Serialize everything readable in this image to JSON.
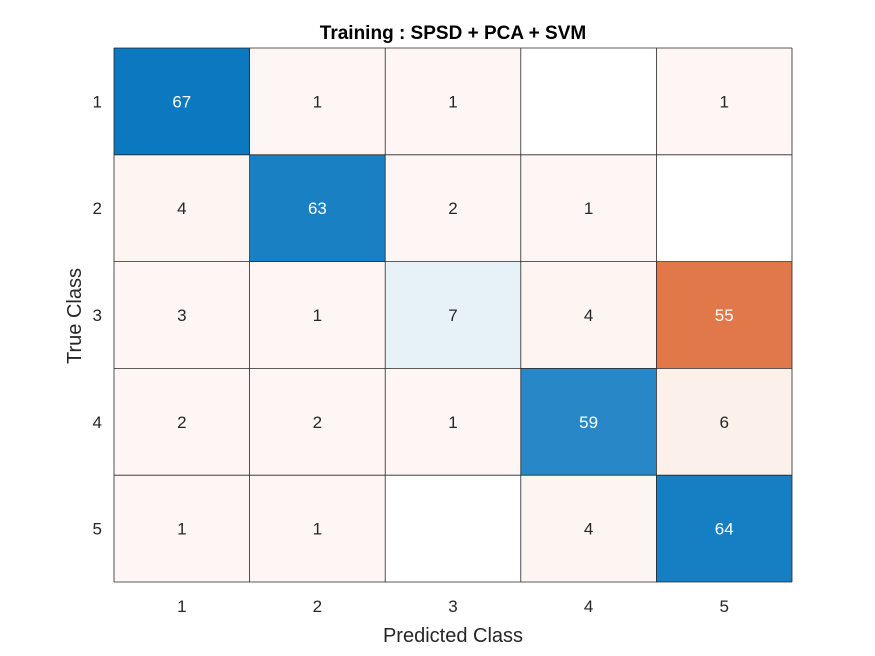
{
  "chart_data": {
    "type": "heatmap",
    "title": "Training : SPSD + PCA + SVM",
    "xlabel": "Predicted Class",
    "ylabel": "True Class",
    "x_categories": [
      "1",
      "2",
      "3",
      "4",
      "5"
    ],
    "y_categories": [
      "1",
      "2",
      "3",
      "4",
      "5"
    ],
    "values": [
      [
        67,
        1,
        1,
        null,
        1
      ],
      [
        4,
        63,
        2,
        1,
        null
      ],
      [
        3,
        1,
        7,
        4,
        55
      ],
      [
        2,
        2,
        1,
        59,
        6
      ],
      [
        1,
        1,
        null,
        4,
        64
      ]
    ],
    "colors": {
      "correct": "#0072bd",
      "incorrect": "#d95319",
      "zero": "#ffffff",
      "grid": "#262626",
      "label_dark": "#262626",
      "label_light": "#ffffff"
    }
  }
}
